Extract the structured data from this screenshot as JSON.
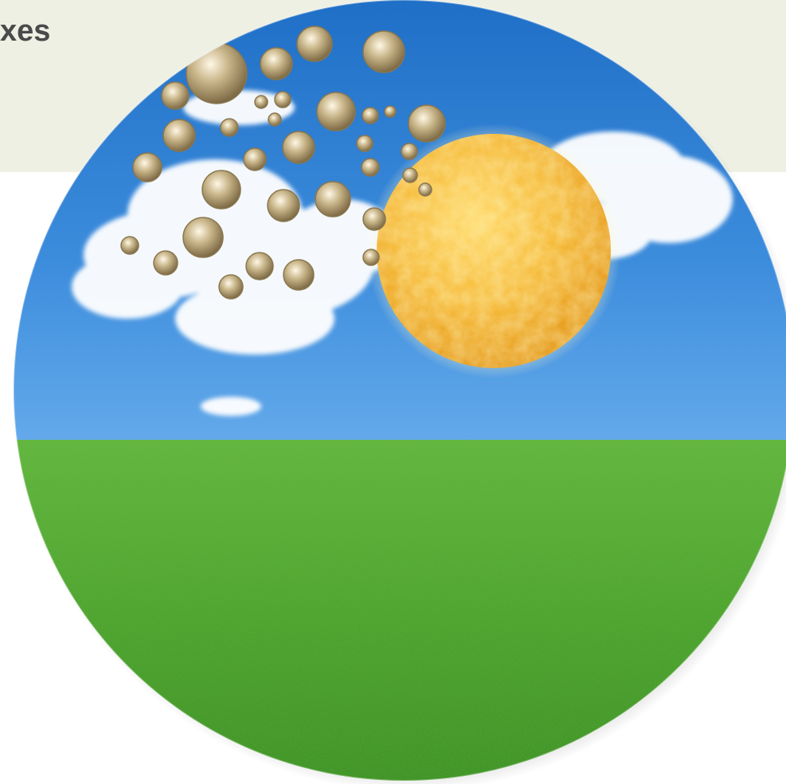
{
  "slide": {
    "title": "xes",
    "colors": {
      "header_band": "#eef0e4",
      "title_text": "#4a4a4a",
      "sky_top": "#1f6fc7",
      "sky_bottom": "#63a9ea",
      "grass": "#3f9a22",
      "sun": "#f3b126",
      "cloud": "#ffffff",
      "bubble": "#d8c9a0"
    }
  },
  "illustration": {
    "icon": "sun-sky-grass-illustration",
    "elements": [
      "sky",
      "clouds",
      "sun",
      "pollen-bubbles",
      "grass"
    ]
  }
}
